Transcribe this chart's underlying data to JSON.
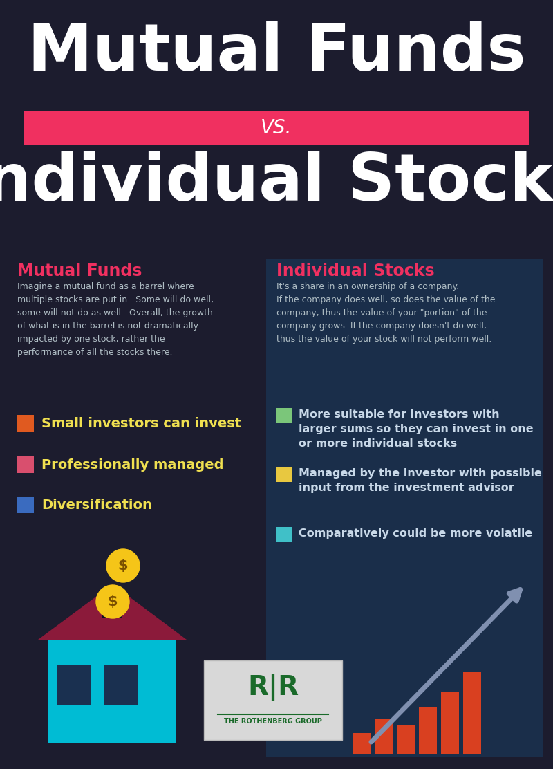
{
  "bg_color": "#1c1c2e",
  "right_panel_color": "#1a2e4a",
  "vs_bar_color": "#f03060",
  "title1": "Mutual Funds",
  "vs_text": "VS.",
  "title2": "Individual Stocks",
  "left_heading": "Mutual Funds",
  "left_heading_color": "#f03060",
  "left_body": "Imagine a mutual fund as a barrel where\nmultiple stocks are put in.  Some will do well,\nsome will not do as well.  Overall, the growth\nof what is in the barrel is not dramatically\nimpacted by one stock, rather the\nperformance of all the stocks there.",
  "right_heading": "Individual Stocks",
  "right_heading_color": "#f03060",
  "right_body": "It's a share in an ownership of a company.\nIf the company does well, so does the value of the\ncompany, thus the value of your \"portion\" of the\ncompany grows. If the company doesn't do well,\nthus the value of your stock will not perform well.",
  "left_bullets": [
    {
      "color": "#e05a20",
      "text": "Small investors can invest"
    },
    {
      "color": "#d94f6e",
      "text": "Professionally managed"
    },
    {
      "color": "#3a6bbf",
      "text": "Diversification"
    }
  ],
  "right_bullets": [
    {
      "color": "#7bc67a",
      "text": "More suitable for investors with\nlarger sums so they can invest in one\nor more individual stocks"
    },
    {
      "color": "#e8c840",
      "text": "Managed by the investor with possible\ninput from the investment advisor"
    },
    {
      "color": "#40c0c8",
      "text": "Comparatively could be more volatile"
    }
  ],
  "text_color_white": "#ffffff",
  "text_color_light": "#c8d8e8",
  "bullet_text_color_left": "#f0e050",
  "bullet_text_color_right": "#c8d8e8"
}
